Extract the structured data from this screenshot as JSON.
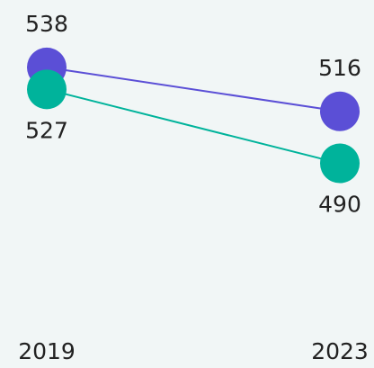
{
  "chart_data": {
    "type": "slope",
    "categories": [
      "2019",
      "2023"
    ],
    "series": [
      {
        "color": "#5b4fd6",
        "values": [
          538,
          516
        ]
      },
      {
        "color": "#00b39b",
        "values": [
          527,
          490
        ]
      }
    ],
    "ylim": [
      470,
      560
    ]
  }
}
